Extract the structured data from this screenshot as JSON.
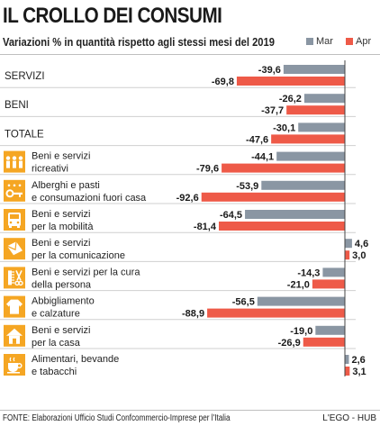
{
  "title": "IL CROLLO DEI CONSUMI",
  "subtitle": "Variazioni % in quantità rispetto agli stessi mesi del 2019",
  "source": "FONTE: Elaborazioni Ufficio Studi Confcommercio-Imprese per l'Italia",
  "brand": "L'EGO - HUB",
  "colors": {
    "mar": "#8a96a3",
    "apr": "#ee5a48",
    "icon": "#f5a623",
    "zero_line": "#444444"
  },
  "chart_data": {
    "type": "bar",
    "orientation": "horizontal",
    "title": "IL CROLLO DEI CONSUMI",
    "subtitle": "Variazioni % in quantità rispetto agli stessi mesi del 2019",
    "series": [
      {
        "name": "Mar",
        "values": [
          -39.6,
          -26.2,
          -30.1,
          -44.1,
          -53.9,
          -64.5,
          4.6,
          -14.3,
          -56.5,
          -19.0,
          2.6
        ]
      },
      {
        "name": "Apr",
        "values": [
          -69.8,
          -37.7,
          -47.6,
          -79.6,
          -92.6,
          -81.4,
          3.0,
          -21.0,
          -88.9,
          -26.9,
          3.1
        ]
      }
    ],
    "categories": [
      {
        "lines": [
          "SERVIZI"
        ],
        "icon": null
      },
      {
        "lines": [
          "BENI"
        ],
        "icon": null
      },
      {
        "lines": [
          "TOTALE"
        ],
        "icon": null
      },
      {
        "lines": [
          "Beni e servizi",
          "ricreativi"
        ],
        "icon": "people-icon"
      },
      {
        "lines": [
          "Alberghi e pasti",
          "e consumazioni fuori casa"
        ],
        "icon": "hotel-key-icon"
      },
      {
        "lines": [
          "Beni e servizi",
          "per la mobilità"
        ],
        "icon": "bus-icon"
      },
      {
        "lines": [
          "Beni e servizi",
          "per la comunicazione"
        ],
        "icon": "envelope-icon"
      },
      {
        "lines": [
          "Beni e servizi per la cura",
          "della persona"
        ],
        "icon": "comb-scissors-icon"
      },
      {
        "lines": [
          "Abbigliamento",
          "e calzature"
        ],
        "icon": "shirt-icon"
      },
      {
        "lines": [
          "Beni e servizi",
          "per la casa"
        ],
        "icon": "house-icon"
      },
      {
        "lines": [
          "Alimentari, bevande",
          "e tabacchi"
        ],
        "icon": "cup-icon"
      }
    ],
    "value_labels_mar": [
      "-39,6",
      "-26,2",
      "-30,1",
      "-44,1",
      "-53,9",
      "-64,5",
      "4,6",
      "-14,3",
      "-56,5",
      "-19,0",
      "2,6"
    ],
    "value_labels_apr": [
      "-69,8",
      "-37,7",
      "-47,6",
      "-79,6",
      "-92,6",
      "-81,4",
      "3,0",
      "-21,0",
      "-88,9",
      "-26,9",
      "3,1"
    ],
    "legend_placement": "top-right",
    "xlim": [
      -100,
      8
    ],
    "grid": false
  }
}
